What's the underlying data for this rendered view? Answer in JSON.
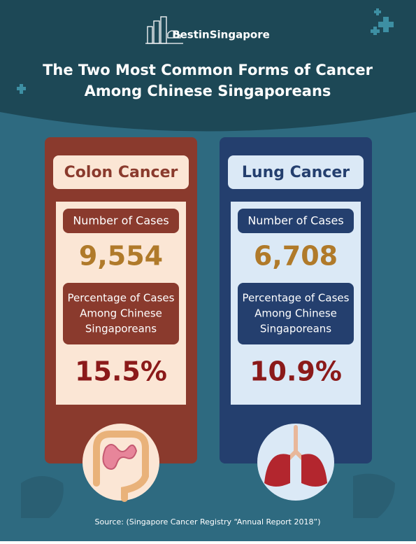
{
  "header": {
    "brand": "BestinSingapore",
    "title_line1": "The Two Most Common Forms of Cancer",
    "title_line2": "Among Chinese Singaporeans"
  },
  "cards": [
    {
      "name": "Colon Cancer",
      "cases_label": "Number of Cases",
      "cases": "9,554",
      "percentage_label": [
        "Percentage of Cases",
        "Among Chinese",
        "Singaporeans"
      ],
      "percentage": "15.5%"
    },
    {
      "name": "Lung Cancer",
      "cases_label": "Number of Cases",
      "cases": "6,708",
      "percentage_label": [
        "Percentage of Cases",
        "Among Chinese",
        "Singaporeans"
      ],
      "percentage": "10.9%"
    }
  ],
  "source": "Source: (Singapore Cancer Registry “Annual Report 2018”)"
}
